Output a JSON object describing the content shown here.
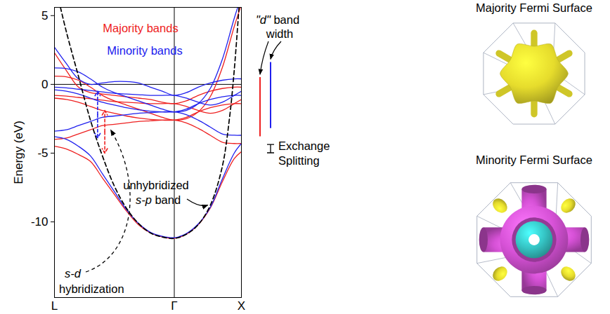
{
  "chart_data": {
    "type": "line",
    "y_label": "Energy (eV)",
    "xlim": [
      0,
      1.56
    ],
    "xticks": [
      {
        "value": 0,
        "label": "L"
      },
      {
        "value": 1,
        "label": "Γ"
      },
      {
        "value": 1.56,
        "label": "X"
      }
    ],
    "ylim": [
      -15.5,
      5.6
    ],
    "yticks": [
      5,
      0,
      -5,
      -10
    ],
    "grid": false,
    "fermi_level": 0,
    "x": [
      0,
      0.1,
      0.2,
      0.3,
      0.4,
      0.5,
      0.6,
      0.7,
      0.8,
      0.9,
      1,
      1.1,
      1.2,
      1.3,
      1.4,
      1.5,
      1.56
    ],
    "series": [
      {
        "name": "Majority bands",
        "color": "#ee2020",
        "bands": [
          [
            -4.5,
            -4.7,
            -5.1,
            -5.6,
            -6.8,
            -8.0,
            -9.2,
            -10.2,
            -10.8,
            -11.1,
            -11.2,
            -10.9,
            -10.2,
            -9.0,
            -7.1,
            -5.4,
            -4.9
          ],
          [
            -4.0,
            -3.9,
            -3.6,
            -3.3,
            -3.0,
            -2.9,
            -2.8,
            -2.7,
            -2.65,
            -2.6,
            -2.6,
            -2.8,
            -3.2,
            -3.7,
            -4.2,
            -4.3,
            -4.3
          ],
          [
            -1.0,
            -1.1,
            -1.3,
            -1.6,
            -1.9,
            -2.1,
            -2.3,
            -2.45,
            -2.55,
            -2.6,
            -2.6,
            -2.4,
            -2.0,
            -1.7,
            -1.5,
            -1.4,
            -1.4
          ],
          [
            -0.8,
            -0.85,
            -0.95,
            -1.05,
            -1.15,
            -1.25,
            -1.3,
            -1.35,
            -1.4,
            -1.4,
            -1.4,
            -1.6,
            -1.9,
            -2.1,
            -1.9,
            -1.4,
            -1.1
          ],
          [
            0.6,
            0.55,
            0.3,
            -0.2,
            -0.8,
            -1.2,
            -1.5,
            -1.8,
            -2.1,
            -2.4,
            -2.6,
            -2.5,
            -2.0,
            -0.9,
            1.2,
            4.2,
            5.8
          ],
          [
            2.3,
            1.0,
            -0.2,
            -0.6,
            -0.7,
            -0.8,
            -0.9,
            -1.0,
            -1.1,
            -1.3,
            -1.4,
            -1.2,
            -0.8,
            -0.5,
            -0.3,
            -0.2,
            -0.2
          ]
        ]
      },
      {
        "name": "Minority bands",
        "color": "#2020ee",
        "bands": [
          [
            -3.8,
            -4.0,
            -4.5,
            -5.2,
            -6.5,
            -7.8,
            -9.1,
            -10.1,
            -10.75,
            -11.05,
            -11.15,
            -10.85,
            -10.15,
            -8.95,
            -6.9,
            -5.0,
            -4.3
          ],
          [
            -3.4,
            -3.3,
            -3.0,
            -2.7,
            -2.4,
            -2.3,
            -2.2,
            -2.1,
            -2.05,
            -2.0,
            -2.0,
            -2.2,
            -2.6,
            -3.1,
            -3.6,
            -3.7,
            -3.7
          ],
          [
            -0.4,
            -0.5,
            -0.7,
            -1.0,
            -1.3,
            -1.5,
            -1.7,
            -1.85,
            -1.95,
            -2.0,
            -2.0,
            -1.8,
            -1.4,
            -1.1,
            -0.9,
            -0.8,
            -0.8
          ],
          [
            -0.2,
            -0.25,
            -0.35,
            -0.45,
            -0.55,
            -0.65,
            -0.7,
            -0.75,
            -0.8,
            -0.8,
            -0.8,
            -1.0,
            -1.3,
            -1.5,
            -1.3,
            -0.8,
            -0.5
          ],
          [
            1.2,
            1.15,
            0.9,
            0.4,
            -0.2,
            -0.6,
            -0.9,
            -1.2,
            -1.5,
            -1.8,
            -2.0,
            -1.9,
            -1.4,
            -0.3,
            1.8,
            4.8,
            6.4
          ],
          [
            2.7,
            1.5,
            0.4,
            0.0,
            0.1,
            0.2,
            0.2,
            0.1,
            -0.2,
            -0.5,
            -0.8,
            -0.6,
            -0.2,
            0.1,
            0.3,
            0.4,
            0.4
          ]
        ]
      }
    ],
    "reference_line": {
      "name": "unhybridized s-p band",
      "color": "#000000",
      "line_style": "dashed",
      "x": [
        0.05,
        0.1,
        0.2,
        0.3,
        0.4,
        0.5,
        0.6,
        0.7,
        0.8,
        0.9,
        1,
        1.1,
        1.2,
        1.3,
        1.4,
        1.46,
        1.5,
        1.54
      ],
      "values": [
        5.6,
        3.8,
        0.6,
        -2.6,
        -5.2,
        -7.4,
        -9,
        -10.1,
        -10.8,
        -11.1,
        -11.2,
        -10.9,
        -10.2,
        -8.8,
        -6.0,
        -2.5,
        1.0,
        5.6
      ]
    },
    "hybridization_gaps": [
      {
        "series": "Minority bands",
        "x": 0.36,
        "values": [
          -0.5,
          -3.9
        ]
      },
      {
        "series": "Majority bands",
        "x": 0.42,
        "values": [
          -1.9,
          -5.0
        ]
      }
    ],
    "annotation": "s-d hybridization",
    "d_band_width": {
      "label": "\"d\" band width",
      "Majority bands": [
        -3.8,
        0.5
      ],
      "Minority bands": [
        -3.2,
        1.6
      ]
    },
    "exchange_splitting": {
      "label": "Exchange Splitting",
      "values": [
        -5.0,
        -4.4
      ]
    }
  },
  "fermi_surfaces": [
    {
      "title": "Majority Fermi Surface",
      "colors": [
        "#e6dc2c"
      ]
    },
    {
      "title": "Minority Fermi Surface",
      "colors": [
        "#d651d6",
        "#35c4c4",
        "#e6dc2c"
      ]
    }
  ]
}
